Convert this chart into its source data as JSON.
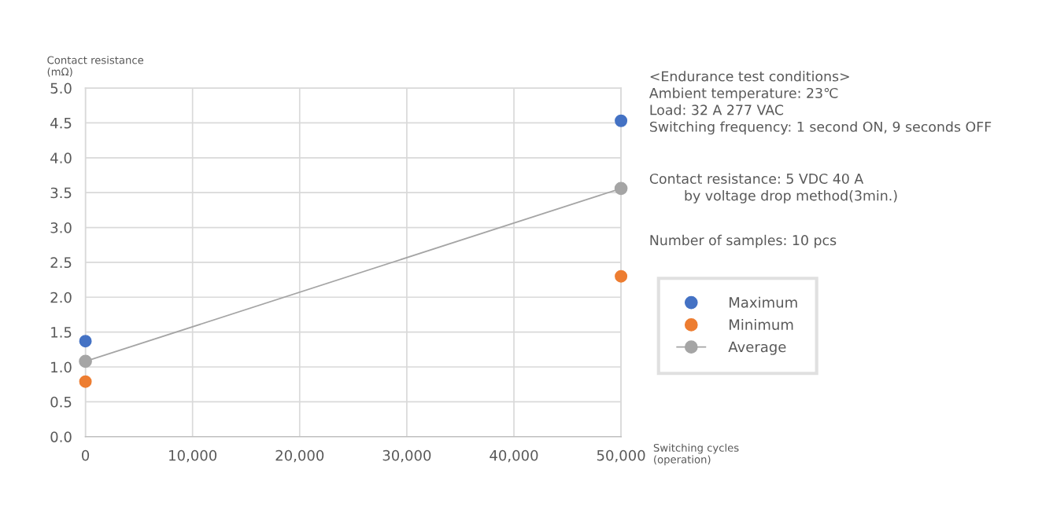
{
  "chart_data": {
    "type": "line",
    "x": [
      0,
      50000
    ],
    "series": [
      {
        "name": "Maximum",
        "type": "scatter",
        "color": "#4472c4",
        "values": [
          1.37,
          4.53
        ]
      },
      {
        "name": "Minimum",
        "type": "scatter",
        "color": "#ed7d31",
        "values": [
          0.79,
          2.3
        ]
      },
      {
        "name": "Average",
        "color": "#a5a5a5",
        "values": [
          1.08,
          3.56
        ]
      }
    ],
    "xlabel": "Switching cycles\n(operation)",
    "ylabel": "Contact resistance\n(mΩ)",
    "xlim": [
      0,
      50000
    ],
    "xticks": [
      0,
      {
        "value": 10000,
        "label": "10,000"
      },
      {
        "value": 20000,
        "label": "20,000"
      },
      {
        "value": 30000,
        "label": "30,000"
      },
      {
        "value": 40000,
        "label": "40,000"
      },
      {
        "value": 50000,
        "label": "50,000"
      }
    ],
    "ylim": [
      0,
      5
    ],
    "yticks": [
      {
        "value": 0,
        "label": "0.0"
      },
      {
        "value": 0.5,
        "label": "0.5"
      },
      {
        "value": 1,
        "label": "1.0"
      },
      {
        "value": 1.5,
        "label": "1.5"
      },
      {
        "value": 2,
        "label": "2.0"
      },
      {
        "value": 2.5,
        "label": "2.5"
      },
      {
        "value": 3,
        "label": "3.0"
      },
      {
        "value": 3.5,
        "label": "3.5"
      },
      {
        "value": 4,
        "label": "4.0"
      },
      {
        "value": 4.5,
        "label": "4.5"
      },
      {
        "value": 5,
        "label": "5.0"
      }
    ],
    "grid": true,
    "legend": "right",
    "marker": "circle",
    "line_style": "solid",
    "annotations": [
      "<Endurance test conditions>\nAmbient temperature: 23℃\nLoad: 32 A 277 VAC\nSwitching frequency: 1 second ON, 9 seconds OFF",
      "Contact resistance: 5 VDC 40 A\n        by voltage drop method(3min.)",
      "Number of samples: 10 pcs"
    ]
  }
}
